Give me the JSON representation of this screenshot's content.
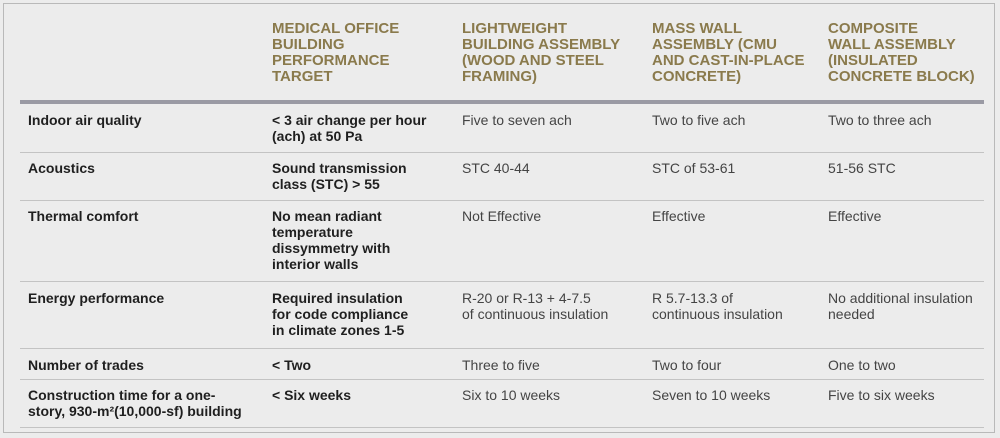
{
  "columns": [
    "",
    "MEDICAL OFFICE\nBUILDING\nPERFORMANCE\nTARGET",
    "LIGHTWEIGHT\nBUILDING ASSEMBLY\n(WOOD AND STEEL\nFRAMING)",
    "MASS WALL\nASSEMBLY (CMU\nAND CAST-IN-PLACE\nCONCRETE)",
    "COMPOSITE\nWALL ASSEMBLY\n(INSULATED\nCONCRETE BLOCK)"
  ],
  "rows": [
    {
      "label": "Indoor air quality",
      "target": "< 3 air change per hour\n(ach) at 50 Pa",
      "lightweight": "Five to seven ach",
      "mass": "Two to five ach",
      "composite": "Two to three ach"
    },
    {
      "label": "Acoustics",
      "target": "Sound transmission\nclass (STC) > 55",
      "lightweight": "STC 40-44",
      "mass": "STC of 53-61",
      "composite": "51-56 STC"
    },
    {
      "label": "Thermal comfort",
      "target": "No mean radiant\ntemperature\ndissymmetry with\ninterior walls",
      "lightweight": "Not Effective",
      "mass": "Effective",
      "composite": "Effective"
    },
    {
      "label": "Energy performance",
      "target": "Required insulation\nfor code compliance\nin climate zones 1-5",
      "lightweight": "R-20 or R-13 + 4-7.5\nof continuous insulation",
      "mass": "R 5.7-13.3 of\ncontinuous insulation",
      "composite": "No additional insulation\nneeded"
    },
    {
      "label": "Number of trades",
      "target": "< Two",
      "lightweight": "Three to five",
      "mass": "Two to four",
      "composite": "One to two"
    },
    {
      "label": "Construction time for a one-\nstory, 930-m²(10,000-sf) building",
      "target": "< Six weeks",
      "lightweight": "Six to 10 weeks",
      "mass": "Seven to 10 weeks",
      "composite": "Five to six weeks"
    }
  ],
  "colors": {
    "header_text": "#8a7a4c",
    "header_rule": "#9a9aa4",
    "row_rule": "#c3c3c3",
    "background": "#ececec"
  }
}
